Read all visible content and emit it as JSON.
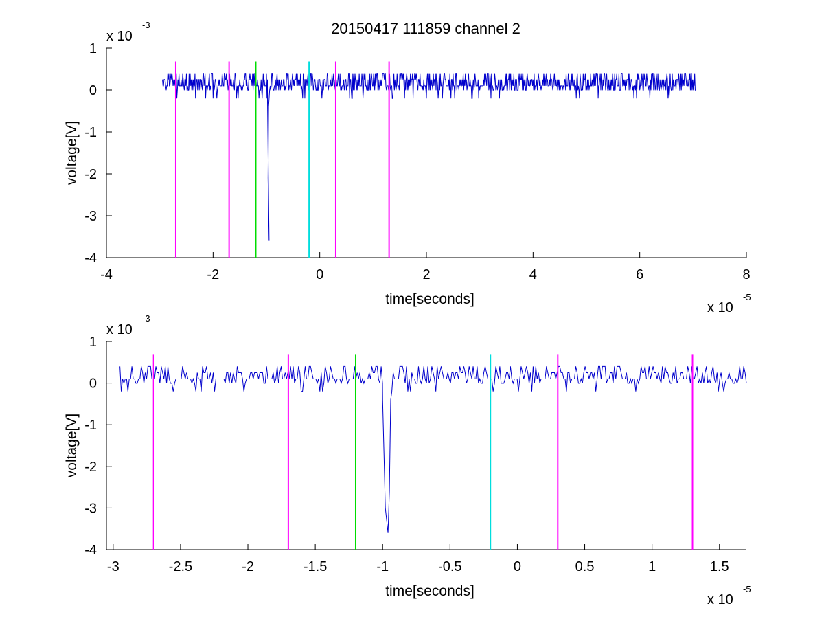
{
  "figure": {
    "title": "20150417 111859 channel 2"
  },
  "colors": {
    "signal": "#0000cc",
    "magenta": "#ff00ff",
    "green": "#00dd00",
    "cyan": "#00dddd",
    "axes": "#000000"
  },
  "chart_data": [
    {
      "type": "line",
      "title": "20150417 111859 channel 2",
      "xlabel": "time[seconds]",
      "ylabel": "voltage[V]",
      "x_multiplier": "x 10",
      "x_exponent": "-5",
      "y_multiplier": "x 10",
      "y_exponent": "-3",
      "xlim": [
        -4,
        8
      ],
      "ylim": [
        -4,
        1
      ],
      "xticks": [
        -4,
        -2,
        0,
        2,
        4,
        6,
        8
      ],
      "xtick_labels": [
        "-4",
        "-2",
        "0",
        "2",
        "4",
        "6",
        "8"
      ],
      "yticks": [
        1,
        0,
        -1,
        -2,
        -3,
        -4
      ],
      "ytick_labels": [
        "1",
        "0",
        "-1",
        "-2",
        "-3",
        "-4"
      ],
      "grid": false,
      "series": [
        {
          "signal": "noise-trace",
          "x_range": [
            -2.95,
            7.05
          ],
          "baseline": 0.1,
          "noise_amplitude": 0.15,
          "dip": {
            "x": [
              -0.98,
              -0.95,
              -0.97,
              -0.96
            ],
            "y": [
              -0.3,
              -3.6,
              -2.1,
              -0.4
            ]
          }
        }
      ],
      "markers": [
        {
          "x": -2.7,
          "color": "magenta",
          "y_top": 0.68
        },
        {
          "x": -1.7,
          "color": "magenta",
          "y_top": 0.68
        },
        {
          "x": -1.2,
          "color": "green",
          "y_top": 0.68
        },
        {
          "x": -0.2,
          "color": "cyan",
          "y_top": 0.68
        },
        {
          "x": 0.3,
          "color": "magenta",
          "y_top": 0.68
        },
        {
          "x": 1.3,
          "color": "magenta",
          "y_top": 0.68
        }
      ]
    },
    {
      "type": "line",
      "title": "",
      "xlabel": "time[seconds]",
      "ylabel": "voltage[V]",
      "x_multiplier": "x 10",
      "x_exponent": "-5",
      "y_multiplier": "x 10",
      "y_exponent": "-3",
      "xlim": [
        -3.05,
        1.7
      ],
      "ylim": [
        -4,
        1
      ],
      "xticks": [
        -3,
        -2.5,
        -2,
        -1.5,
        -1,
        -0.5,
        0,
        0.5,
        1,
        1.5
      ],
      "xtick_labels": [
        "-3",
        "-2.5",
        "-2",
        "-1.5",
        "-1",
        "-0.5",
        "0",
        "0.5",
        "1",
        "1.5"
      ],
      "yticks": [
        1,
        0,
        -1,
        -2,
        -3,
        -4
      ],
      "ytick_labels": [
        "1",
        "0",
        "-1",
        "-2",
        "-3",
        "-4"
      ],
      "grid": false,
      "series": [
        {
          "signal": "noise-trace",
          "x_range": [
            -2.95,
            1.7
          ],
          "baseline": 0.1,
          "noise_amplitude": 0.15,
          "dip": {
            "x": [
              -1.0,
              -0.98,
              -0.96,
              -0.95,
              -0.94
            ],
            "y": [
              -0.4,
              -3.0,
              -3.6,
              -2.6,
              -0.4
            ]
          }
        }
      ],
      "markers": [
        {
          "x": -2.7,
          "color": "magenta",
          "y_top": 0.68
        },
        {
          "x": -1.7,
          "color": "magenta",
          "y_top": 0.68
        },
        {
          "x": -1.2,
          "color": "green",
          "y_top": 0.68
        },
        {
          "x": -0.2,
          "color": "cyan",
          "y_top": 0.68
        },
        {
          "x": 0.3,
          "color": "magenta",
          "y_top": 0.68
        },
        {
          "x": 1.3,
          "color": "magenta",
          "y_top": 0.68
        }
      ]
    }
  ]
}
